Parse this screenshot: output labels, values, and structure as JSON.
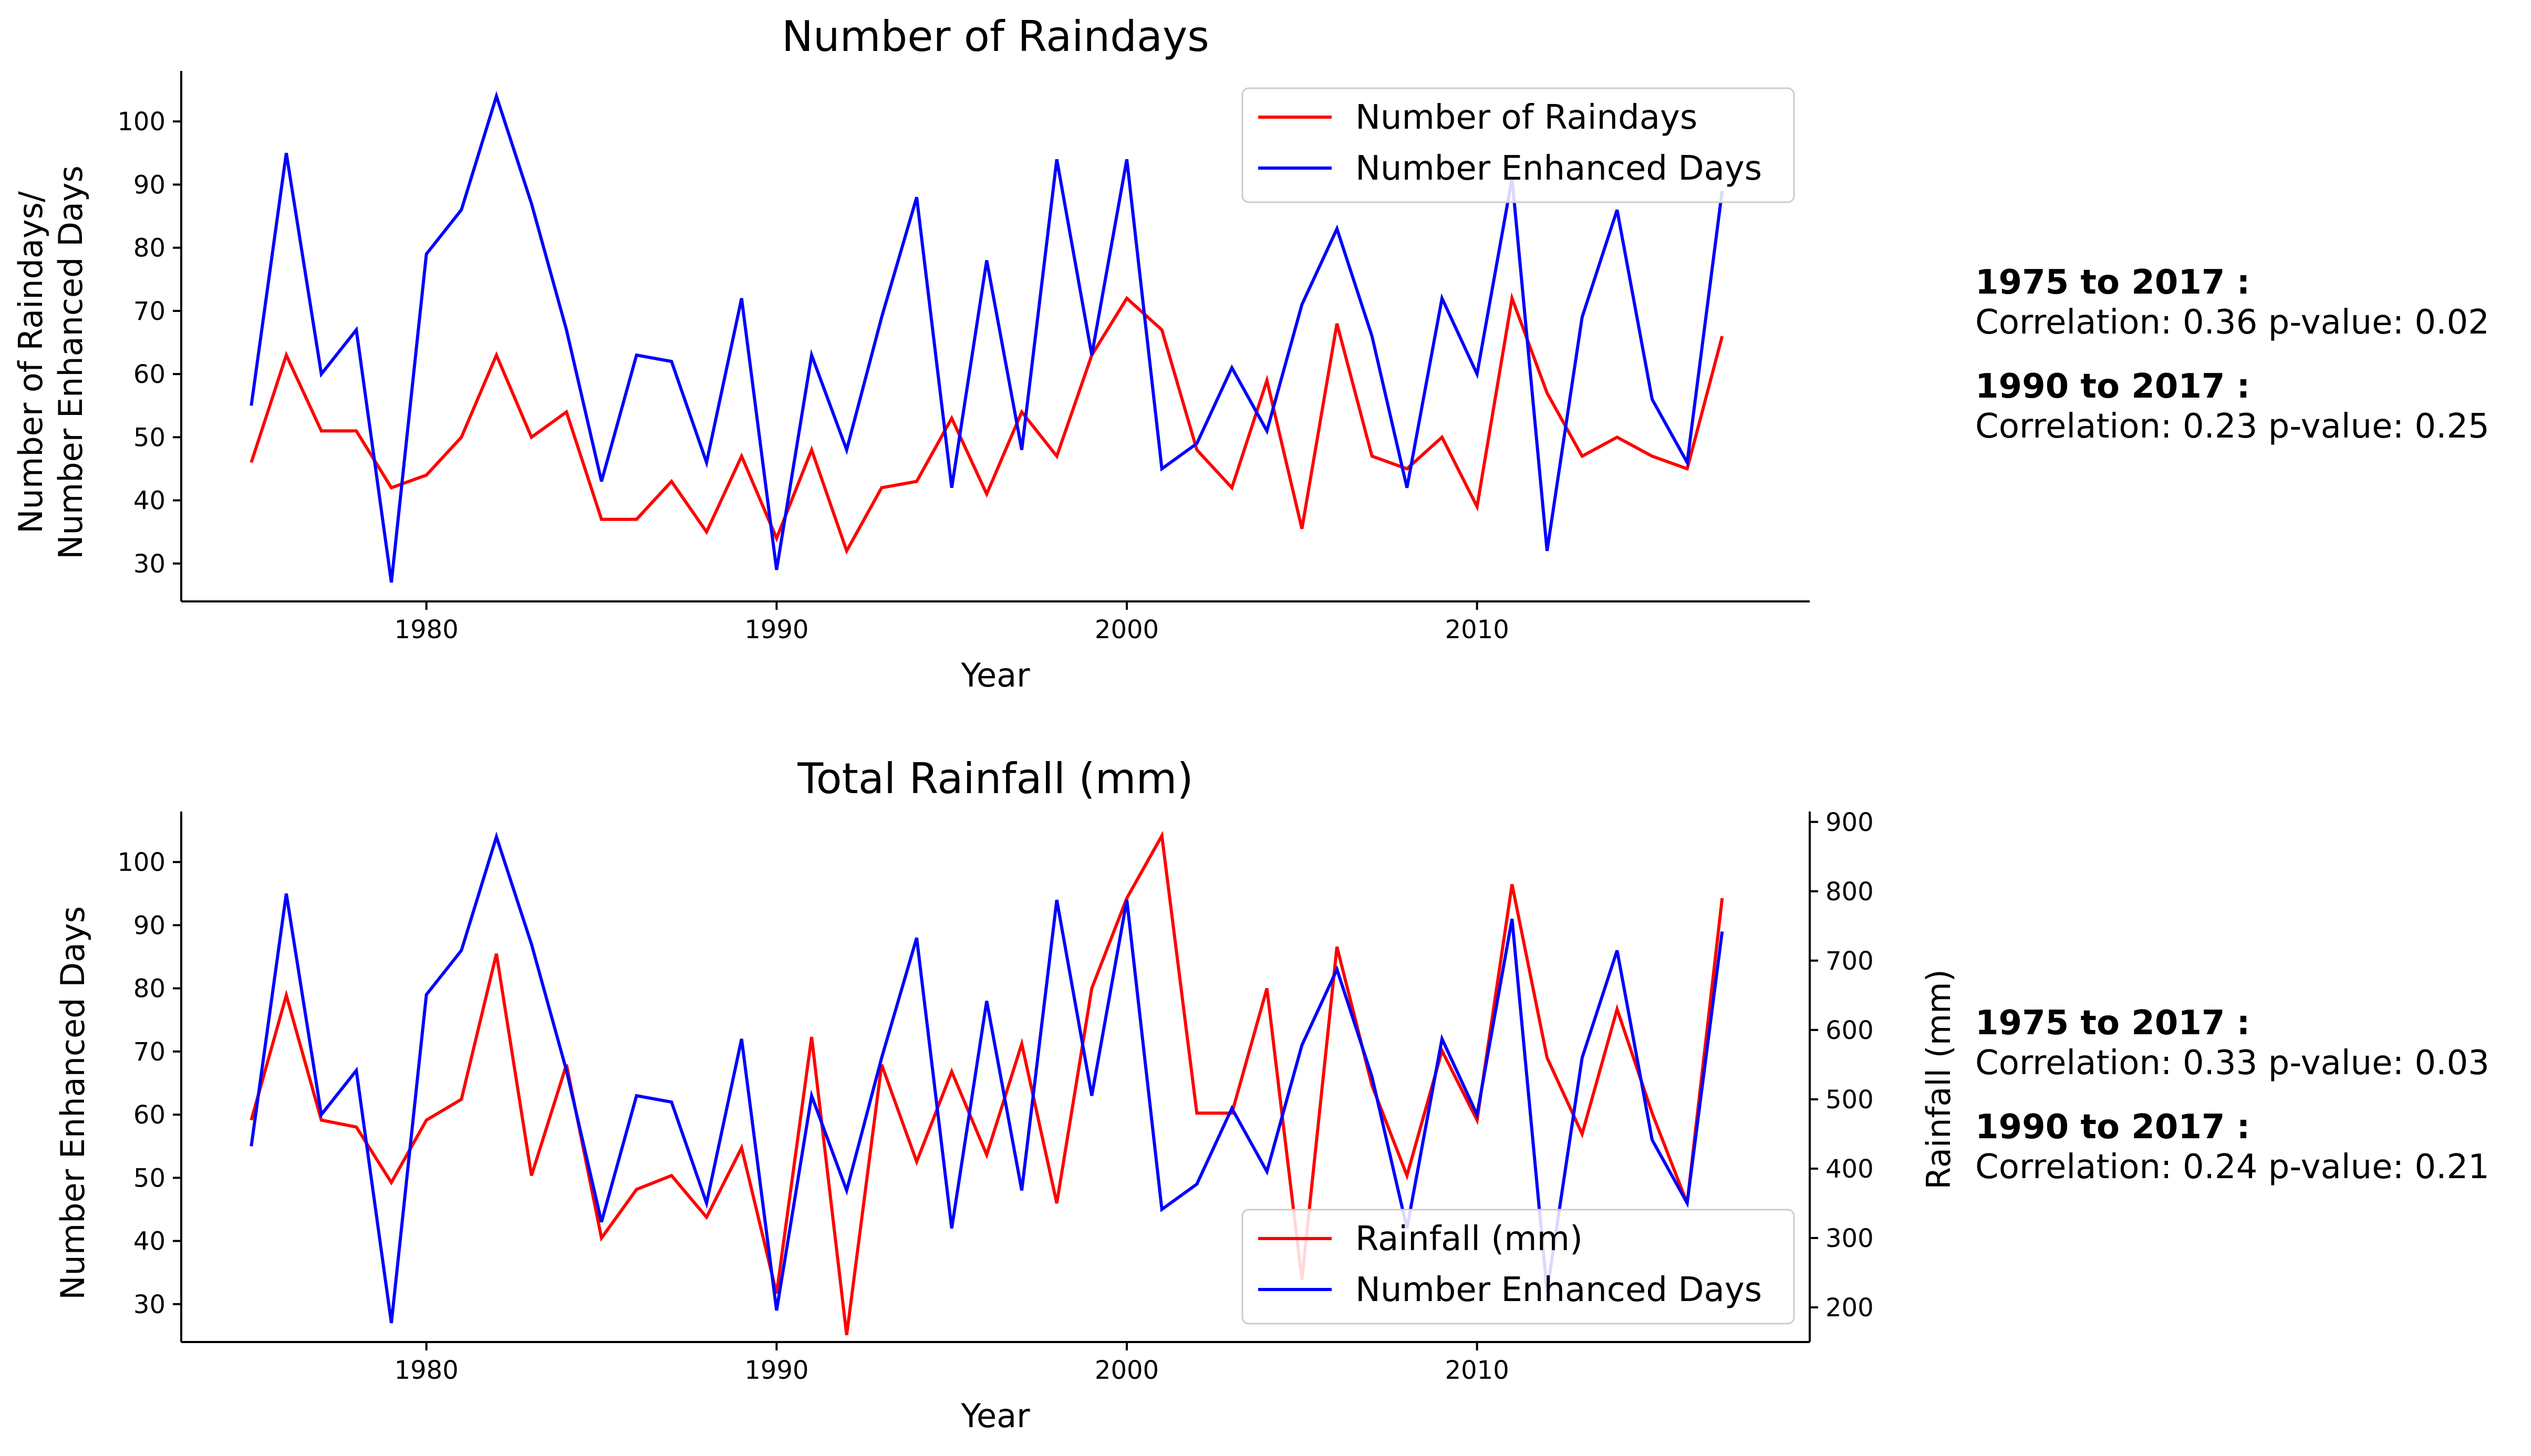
{
  "colors": {
    "red": "#ff0000",
    "blue": "#0000ff",
    "axis": "#000000"
  },
  "chart_data": [
    {
      "type": "line",
      "title": "Number of Raindays",
      "xlabel": "Year",
      "ylabel_line1": "Number of Raindays/",
      "ylabel_line2": "Number Enhanced Days",
      "xlim": [
        1973,
        2019.5
      ],
      "ylim": [
        24,
        108
      ],
      "xticks": [
        1980,
        1990,
        2000,
        2010
      ],
      "yticks": [
        30,
        40,
        50,
        60,
        70,
        80,
        90,
        100
      ],
      "legend_position": "top-right",
      "x": [
        1975,
        1976,
        1977,
        1978,
        1979,
        1980,
        1981,
        1982,
        1983,
        1984,
        1985,
        1986,
        1987,
        1988,
        1989,
        1990,
        1991,
        1992,
        1993,
        1994,
        1995,
        1996,
        1997,
        1998,
        1999,
        2000,
        2001,
        2002,
        2003,
        2004,
        2005,
        2006,
        2007,
        2008,
        2009,
        2010,
        2011,
        2012,
        2013,
        2014,
        2015,
        2016,
        2017
      ],
      "series": [
        {
          "name": "Number of Raindays",
          "color": "#ff0000",
          "values": [
            46,
            63,
            51,
            51,
            42,
            44,
            50,
            63,
            50,
            54,
            37,
            37,
            43,
            35,
            47,
            34,
            48,
            32,
            42,
            43,
            53,
            41,
            54,
            47,
            63,
            72,
            67,
            48,
            42,
            59,
            35.5,
            68,
            47,
            45,
            50,
            39,
            72,
            57,
            47,
            50,
            47,
            45,
            66
          ]
        },
        {
          "name": "Number Enhanced Days",
          "color": "#0000ff",
          "values": [
            55,
            95,
            60,
            67,
            27,
            79,
            86,
            104,
            87,
            67,
            43,
            63,
            62,
            46,
            72,
            29,
            63,
            48,
            69,
            88,
            42,
            78,
            48,
            94,
            63,
            94,
            45,
            49,
            61,
            51,
            71,
            83,
            66,
            42,
            72,
            60,
            91,
            32,
            69,
            86,
            56,
            46,
            89
          ]
        }
      ],
      "stats": [
        {
          "period": "1975 to 2017 :",
          "text": "Correlation: 0.36 p-value: 0.02"
        },
        {
          "period": "1990 to 2017 :",
          "text": "Correlation: 0.23 p-value: 0.25"
        }
      ]
    },
    {
      "type": "line",
      "title": "Total Rainfall (mm)",
      "xlabel": "Year",
      "ylabel": "Number Enhanced Days",
      "ylabel_right": "Rainfall (mm)",
      "xlim": [
        1973,
        2019.5
      ],
      "ylim": [
        24,
        108
      ],
      "ylim_right": [
        150,
        915
      ],
      "xticks": [
        1980,
        1990,
        2000,
        2010
      ],
      "yticks": [
        30,
        40,
        50,
        60,
        70,
        80,
        90,
        100
      ],
      "yticks_right": [
        200,
        300,
        400,
        500,
        600,
        700,
        800,
        900
      ],
      "legend_position": "lower-right",
      "x": [
        1975,
        1976,
        1977,
        1978,
        1979,
        1980,
        1981,
        1982,
        1983,
        1984,
        1985,
        1986,
        1987,
        1988,
        1989,
        1990,
        1991,
        1992,
        1993,
        1994,
        1995,
        1996,
        1997,
        1998,
        1999,
        2000,
        2001,
        2002,
        2003,
        2004,
        2005,
        2006,
        2007,
        2008,
        2009,
        2010,
        2011,
        2012,
        2013,
        2014,
        2015,
        2016,
        2017
      ],
      "series": [
        {
          "name": "Rainfall (mm)",
          "color": "#ff0000",
          "axis": "right",
          "values": [
            470,
            650,
            470,
            460,
            380,
            470,
            500,
            710,
            390,
            550,
            300,
            370,
            390,
            330,
            430,
            220,
            590,
            160,
            550,
            410,
            540,
            420,
            580,
            350,
            660,
            790,
            880,
            480,
            480,
            660,
            240,
            720,
            520,
            390,
            570,
            470,
            810,
            560,
            450,
            630,
            480,
            350,
            790
          ]
        },
        {
          "name": "Number Enhanced Days",
          "color": "#0000ff",
          "axis": "left",
          "values": [
            55,
            95,
            60,
            67,
            27,
            79,
            86,
            104,
            87,
            67,
            43,
            63,
            62,
            46,
            72,
            29,
            63,
            48,
            69,
            88,
            42,
            78,
            48,
            94,
            63,
            94,
            45,
            49,
            61,
            51,
            71,
            83,
            66,
            42,
            72,
            60,
            91,
            32,
            69,
            86,
            56,
            46,
            89
          ]
        }
      ],
      "stats": [
        {
          "period": "1975 to 2017 :",
          "text": "Correlation: 0.33 p-value: 0.03"
        },
        {
          "period": "1990 to 2017 :",
          "text": "Correlation: 0.24 p-value: 0.21"
        }
      ]
    }
  ]
}
